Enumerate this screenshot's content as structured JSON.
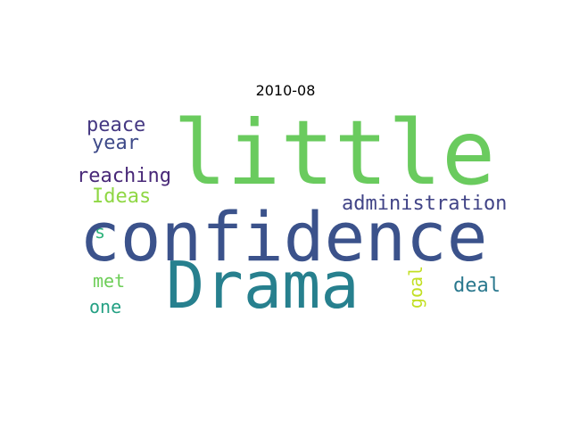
{
  "title": "2010-08",
  "words": {
    "little": "little",
    "confidence": "confidence",
    "drama": "Drama",
    "peace": "peace",
    "year": "year",
    "reaching": "reaching",
    "ideas": "Ideas",
    "administration": "administration",
    "s": "s",
    "met": "met",
    "one": "one",
    "deal": "deal",
    "goal": "goal"
  },
  "colors": {
    "little": "#6acb5e",
    "confidence": "#3b528b",
    "drama": "#27808e",
    "peace": "#453882",
    "year": "#3e4a89",
    "reaching": "#482878",
    "ideas": "#8fd744",
    "administration": "#414487",
    "s": "#2fb47c",
    "met": "#6ece58",
    "one": "#23a083",
    "deal": "#2a788e",
    "goal": "#c2df23"
  }
}
